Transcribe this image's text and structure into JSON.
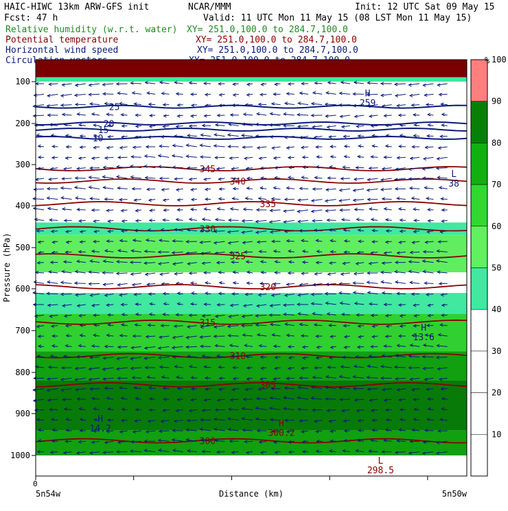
{
  "header": {
    "title": "HAIC-HIWC 13km ARW-GFS init",
    "org": "NCAR/MMM",
    "init": "Init: 12 UTC Sat 09 May 15",
    "fcst": "Fcst:   47 h",
    "valid": "Valid: 11 UTC Mon 11 May 15 (08 LST Mon 11 May 15)"
  },
  "legend": [
    {
      "label": "Relative humidity (w.r.t. water)",
      "xy": "XY= 251.0,100.0 to 284.7,100.0",
      "color": "#1f8a1f"
    },
    {
      "label": "Potential temperature",
      "xy": "XY= 251.0,100.0 to 284.7,100.0",
      "color": "#8b0000"
    },
    {
      "label": "Horizontal wind speed",
      "xy": "XY= 251.0,100.0 to 284.7,100.0",
      "color": "#0a1a7a"
    },
    {
      "label": "Circulation vectors",
      "xy": "XY= 251.0,100.0 to 284.7,100.0",
      "color": "#0a1a7a"
    }
  ],
  "colorbar": {
    "unit": "%",
    "ticks": [
      "10",
      "20",
      "30",
      "40",
      "50",
      "60",
      "70",
      "80",
      "90",
      "100"
    ],
    "colors": [
      "#ffffff",
      "#ffffff",
      "#ffffff",
      "#ffffff",
      "#40e8a0",
      "#60f060",
      "#30d830",
      "#10b010",
      "#088008",
      "#ff7f7f"
    ]
  },
  "chart_data": {
    "type": "heatmap",
    "xlabel": "Distance (km)",
    "ylabel": "Pressure (hPa)",
    "x_start_tick": "0",
    "x_left_label": "5n54w",
    "x_right_label": "5n50w",
    "yticks": [
      "100",
      "200",
      "300",
      "400",
      "500",
      "600",
      "700",
      "800",
      "900",
      "1000"
    ],
    "ylim": [
      1050,
      75
    ],
    "rh_bands": [
      {
        "p_top": 75,
        "p_bot": 95,
        "rh": 100
      },
      {
        "p_top": 95,
        "p_bot": 100,
        "rh": 55
      },
      {
        "p_top": 100,
        "p_bot": 440,
        "rh": 20
      },
      {
        "p_top": 440,
        "p_bot": 470,
        "rh": 55
      },
      {
        "p_top": 470,
        "p_bot": 560,
        "rh": 65
      },
      {
        "p_top": 560,
        "p_bot": 610,
        "rh": 40
      },
      {
        "p_top": 610,
        "p_bot": 660,
        "rh": 55
      },
      {
        "p_top": 660,
        "p_bot": 750,
        "rh": 70
      },
      {
        "p_top": 750,
        "p_bot": 820,
        "rh": 80
      },
      {
        "p_top": 820,
        "p_bot": 940,
        "rh": 92
      },
      {
        "p_top": 940,
        "p_bot": 1000,
        "rh": 85
      },
      {
        "p_top": 1000,
        "p_bot": 1050,
        "rh": 5
      }
    ],
    "theta_contours": [
      {
        "value": "345",
        "p": 310
      },
      {
        "value": "340",
        "p": 340
      },
      {
        "value": "335",
        "p": 395
      },
      {
        "value": "330",
        "p": 455
      },
      {
        "value": "325",
        "p": 520
      },
      {
        "value": "320",
        "p": 595
      },
      {
        "value": "315",
        "p": 680
      },
      {
        "value": "310",
        "p": 760
      },
      {
        "value": "305",
        "p": 830
      },
      {
        "value": "300",
        "p": 965
      }
    ],
    "wind_contours": [
      {
        "value": "25",
        "p": 160
      },
      {
        "value": "20",
        "p": 200
      },
      {
        "value": "15",
        "p": 215
      },
      {
        "value": "10",
        "p": 235
      }
    ],
    "markers": [
      {
        "letter": "L",
        "value": "38",
        "p": 330,
        "x": 0.97
      },
      {
        "letter": "H",
        "value": "13.6",
        "p": 700,
        "x": 0.9
      },
      {
        "letter": "H",
        "value": "14.2",
        "p": 920,
        "x": 0.15
      },
      {
        "letter": "H",
        "value": "300.2",
        "p": 930,
        "x": 0.57
      },
      {
        "letter": "H",
        "value": "259",
        "p": 135,
        "x": 0.77
      },
      {
        "letter": "L",
        "value": "298.5",
        "p": 1020,
        "x": 0.8
      }
    ]
  }
}
